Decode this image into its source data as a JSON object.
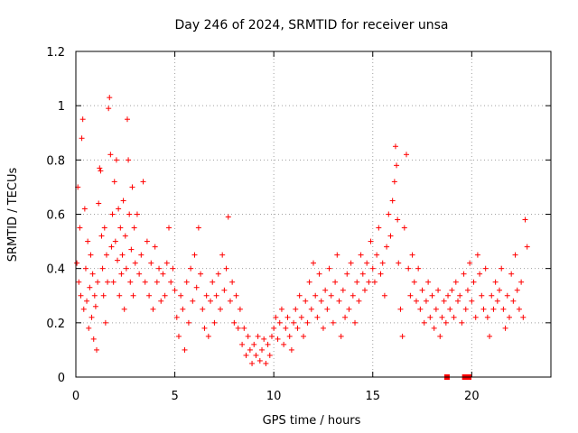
{
  "chart_data": {
    "type": "scatter",
    "title": "Day 246 of 2024, SRMTID for receiver unsa",
    "xlabel": "GPS time / hours",
    "ylabel": "SRMTID / TECUs",
    "xlim": [
      0,
      24
    ],
    "ylim": [
      0,
      1.2
    ],
    "xticks": [
      0,
      5,
      10,
      15,
      20
    ],
    "yticks": [
      0,
      0.2,
      0.4,
      0.6,
      0.8,
      1.0,
      1.2
    ],
    "xtick_labels": [
      "0",
      "5",
      "10",
      "15",
      "20"
    ],
    "ytick_labels": [
      "0",
      "0.2",
      "0.4",
      "0.6",
      "0.8",
      "1",
      "1.2"
    ],
    "grid": true,
    "marker": "plus",
    "color": "#ff0000",
    "series": [
      {
        "name": "SRMTID",
        "points": [
          [
            0.05,
            0.42
          ],
          [
            0.1,
            0.7
          ],
          [
            0.15,
            0.35
          ],
          [
            0.2,
            0.55
          ],
          [
            0.25,
            0.3
          ],
          [
            0.3,
            0.88
          ],
          [
            0.35,
            0.95
          ],
          [
            0.4,
            0.25
          ],
          [
            0.45,
            0.62
          ],
          [
            0.5,
            0.4
          ],
          [
            0.55,
            0.28
          ],
          [
            0.6,
            0.5
          ],
          [
            0.65,
            0.18
          ],
          [
            0.7,
            0.33
          ],
          [
            0.75,
            0.45
          ],
          [
            0.8,
            0.22
          ],
          [
            0.85,
            0.38
          ],
          [
            0.9,
            0.14
          ],
          [
            0.95,
            0.3
          ],
          [
            1.0,
            0.26
          ],
          [
            1.05,
            0.1
          ],
          [
            1.1,
            0.35
          ],
          [
            1.15,
            0.64
          ],
          [
            1.2,
            0.77
          ],
          [
            1.25,
            0.76
          ],
          [
            1.3,
            0.52
          ],
          [
            1.35,
            0.4
          ],
          [
            1.4,
            0.3
          ],
          [
            1.45,
            0.55
          ],
          [
            1.5,
            0.2
          ],
          [
            1.55,
            0.45
          ],
          [
            1.6,
            0.35
          ],
          [
            1.65,
            0.99
          ],
          [
            1.7,
            1.03
          ],
          [
            1.75,
            0.82
          ],
          [
            1.8,
            0.48
          ],
          [
            1.85,
            0.6
          ],
          [
            1.9,
            0.35
          ],
          [
            1.95,
            0.72
          ],
          [
            2.0,
            0.5
          ],
          [
            2.05,
            0.8
          ],
          [
            2.1,
            0.43
          ],
          [
            2.15,
            0.62
          ],
          [
            2.2,
            0.3
          ],
          [
            2.25,
            0.55
          ],
          [
            2.3,
            0.38
          ],
          [
            2.35,
            0.45
          ],
          [
            2.4,
            0.65
          ],
          [
            2.45,
            0.25
          ],
          [
            2.5,
            0.52
          ],
          [
            2.55,
            0.4
          ],
          [
            2.6,
            0.95
          ],
          [
            2.65,
            0.8
          ],
          [
            2.7,
            0.6
          ],
          [
            2.75,
            0.35
          ],
          [
            2.8,
            0.47
          ],
          [
            2.85,
            0.7
          ],
          [
            2.9,
            0.3
          ],
          [
            2.95,
            0.55
          ],
          [
            3.0,
            0.42
          ],
          [
            3.1,
            0.6
          ],
          [
            3.2,
            0.38
          ],
          [
            3.3,
            0.45
          ],
          [
            3.4,
            0.72
          ],
          [
            3.5,
            0.35
          ],
          [
            3.6,
            0.5
          ],
          [
            3.7,
            0.3
          ],
          [
            3.8,
            0.42
          ],
          [
            3.9,
            0.25
          ],
          [
            4.0,
            0.48
          ],
          [
            4.1,
            0.35
          ],
          [
            4.2,
            0.4
          ],
          [
            4.3,
            0.28
          ],
          [
            4.4,
            0.38
          ],
          [
            4.5,
            0.3
          ],
          [
            4.6,
            0.42
          ],
          [
            4.7,
            0.55
          ],
          [
            4.8,
            0.35
          ],
          [
            4.9,
            0.4
          ],
          [
            5.0,
            0.32
          ],
          [
            5.1,
            0.22
          ],
          [
            5.2,
            0.15
          ],
          [
            5.3,
            0.3
          ],
          [
            5.4,
            0.25
          ],
          [
            5.5,
            0.1
          ],
          [
            5.6,
            0.35
          ],
          [
            5.7,
            0.2
          ],
          [
            5.8,
            0.4
          ],
          [
            5.9,
            0.28
          ],
          [
            6.0,
            0.45
          ],
          [
            6.1,
            0.33
          ],
          [
            6.2,
            0.55
          ],
          [
            6.3,
            0.38
          ],
          [
            6.4,
            0.25
          ],
          [
            6.5,
            0.18
          ],
          [
            6.6,
            0.3
          ],
          [
            6.7,
            0.15
          ],
          [
            6.8,
            0.28
          ],
          [
            6.9,
            0.35
          ],
          [
            7.0,
            0.2
          ],
          [
            7.1,
            0.3
          ],
          [
            7.2,
            0.38
          ],
          [
            7.3,
            0.25
          ],
          [
            7.4,
            0.45
          ],
          [
            7.5,
            0.32
          ],
          [
            7.6,
            0.4
          ],
          [
            7.7,
            0.59
          ],
          [
            7.8,
            0.28
          ],
          [
            7.9,
            0.35
          ],
          [
            8.0,
            0.2
          ],
          [
            8.1,
            0.3
          ],
          [
            8.2,
            0.18
          ],
          [
            8.3,
            0.25
          ],
          [
            8.4,
            0.12
          ],
          [
            8.5,
            0.18
          ],
          [
            8.6,
            0.08
          ],
          [
            8.7,
            0.15
          ],
          [
            8.8,
            0.1
          ],
          [
            8.9,
            0.05
          ],
          [
            9.0,
            0.12
          ],
          [
            9.1,
            0.08
          ],
          [
            9.2,
            0.15
          ],
          [
            9.3,
            0.06
          ],
          [
            9.4,
            0.1
          ],
          [
            9.5,
            0.14
          ],
          [
            9.6,
            0.05
          ],
          [
            9.7,
            0.12
          ],
          [
            9.8,
            0.08
          ],
          [
            9.9,
            0.15
          ],
          [
            10.0,
            0.18
          ],
          [
            10.1,
            0.22
          ],
          [
            10.2,
            0.14
          ],
          [
            10.3,
            0.2
          ],
          [
            10.4,
            0.25
          ],
          [
            10.5,
            0.12
          ],
          [
            10.6,
            0.18
          ],
          [
            10.7,
            0.22
          ],
          [
            10.8,
            0.15
          ],
          [
            10.9,
            0.1
          ],
          [
            11.0,
            0.2
          ],
          [
            11.1,
            0.25
          ],
          [
            11.2,
            0.18
          ],
          [
            11.3,
            0.3
          ],
          [
            11.4,
            0.22
          ],
          [
            11.5,
            0.15
          ],
          [
            11.6,
            0.28
          ],
          [
            11.7,
            0.2
          ],
          [
            11.8,
            0.35
          ],
          [
            11.9,
            0.25
          ],
          [
            12.0,
            0.42
          ],
          [
            12.1,
            0.3
          ],
          [
            12.2,
            0.22
          ],
          [
            12.3,
            0.38
          ],
          [
            12.4,
            0.28
          ],
          [
            12.5,
            0.18
          ],
          [
            12.6,
            0.32
          ],
          [
            12.7,
            0.25
          ],
          [
            12.8,
            0.4
          ],
          [
            12.9,
            0.3
          ],
          [
            13.0,
            0.2
          ],
          [
            13.1,
            0.35
          ],
          [
            13.2,
            0.45
          ],
          [
            13.3,
            0.28
          ],
          [
            13.4,
            0.15
          ],
          [
            13.5,
            0.32
          ],
          [
            13.6,
            0.22
          ],
          [
            13.7,
            0.38
          ],
          [
            13.8,
            0.25
          ],
          [
            13.9,
            0.42
          ],
          [
            14.0,
            0.3
          ],
          [
            14.1,
            0.2
          ],
          [
            14.2,
            0.35
          ],
          [
            14.3,
            0.28
          ],
          [
            14.4,
            0.45
          ],
          [
            14.5,
            0.38
          ],
          [
            14.6,
            0.32
          ],
          [
            14.7,
            0.42
          ],
          [
            14.8,
            0.35
          ],
          [
            14.9,
            0.5
          ],
          [
            15.0,
            0.4
          ],
          [
            15.1,
            0.35
          ],
          [
            15.2,
            0.45
          ],
          [
            15.3,
            0.55
          ],
          [
            15.4,
            0.38
          ],
          [
            15.5,
            0.42
          ],
          [
            15.6,
            0.3
          ],
          [
            15.7,
            0.48
          ],
          [
            15.8,
            0.6
          ],
          [
            15.9,
            0.52
          ],
          [
            16.0,
            0.65
          ],
          [
            16.1,
            0.72
          ],
          [
            16.15,
            0.85
          ],
          [
            16.2,
            0.78
          ],
          [
            16.25,
            0.58
          ],
          [
            16.3,
            0.42
          ],
          [
            16.4,
            0.25
          ],
          [
            16.5,
            0.15
          ],
          [
            16.6,
            0.55
          ],
          [
            16.7,
            0.82
          ],
          [
            16.8,
            0.4
          ],
          [
            16.9,
            0.3
          ],
          [
            17.0,
            0.45
          ],
          [
            17.1,
            0.35
          ],
          [
            17.2,
            0.28
          ],
          [
            17.3,
            0.4
          ],
          [
            17.4,
            0.25
          ],
          [
            17.5,
            0.32
          ],
          [
            17.6,
            0.2
          ],
          [
            17.7,
            0.28
          ],
          [
            17.8,
            0.35
          ],
          [
            17.9,
            0.22
          ],
          [
            18.0,
            0.3
          ],
          [
            18.1,
            0.18
          ],
          [
            18.2,
            0.25
          ],
          [
            18.3,
            0.32
          ],
          [
            18.4,
            0.15
          ],
          [
            18.5,
            0.22
          ],
          [
            18.6,
            0.28
          ],
          [
            18.7,
            0.2
          ],
          [
            18.8,
            0.3
          ],
          [
            18.9,
            0.25
          ],
          [
            19.0,
            0.32
          ],
          [
            19.1,
            0.22
          ],
          [
            19.2,
            0.35
          ],
          [
            19.3,
            0.28
          ],
          [
            19.4,
            0.3
          ],
          [
            19.5,
            0.2
          ],
          [
            19.6,
            0.38
          ],
          [
            19.7,
            0.25
          ],
          [
            19.8,
            0.32
          ],
          [
            19.9,
            0.42
          ],
          [
            20.0,
            0.28
          ],
          [
            20.1,
            0.35
          ],
          [
            20.2,
            0.22
          ],
          [
            20.3,
            0.45
          ],
          [
            20.4,
            0.38
          ],
          [
            20.5,
            0.3
          ],
          [
            20.6,
            0.25
          ],
          [
            20.7,
            0.4
          ],
          [
            20.8,
            0.22
          ],
          [
            20.9,
            0.15
          ],
          [
            21.0,
            0.3
          ],
          [
            21.1,
            0.25
          ],
          [
            21.2,
            0.35
          ],
          [
            21.3,
            0.28
          ],
          [
            21.4,
            0.32
          ],
          [
            21.5,
            0.4
          ],
          [
            21.6,
            0.25
          ],
          [
            21.7,
            0.18
          ],
          [
            21.8,
            0.3
          ],
          [
            21.9,
            0.22
          ],
          [
            22.0,
            0.38
          ],
          [
            22.1,
            0.28
          ],
          [
            22.2,
            0.45
          ],
          [
            22.3,
            0.32
          ],
          [
            22.4,
            0.25
          ],
          [
            22.5,
            0.35
          ],
          [
            22.6,
            0.22
          ],
          [
            22.7,
            0.58
          ],
          [
            22.8,
            0.48
          ]
        ]
      }
    ],
    "flag_markers": [
      18.75,
      19.65,
      19.75,
      19.85
    ]
  }
}
